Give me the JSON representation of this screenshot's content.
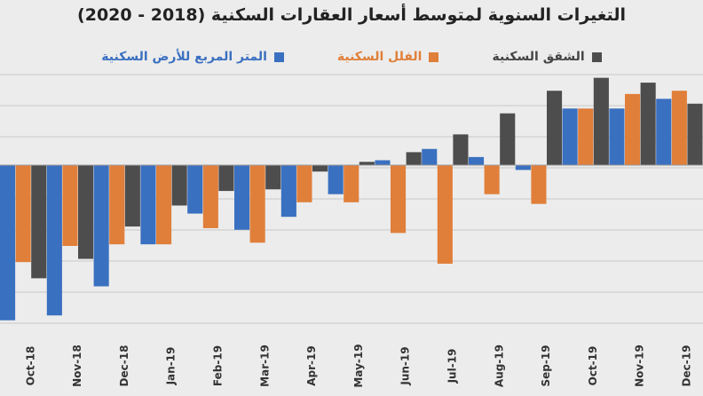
{
  "chart_data": {
    "type": "bar",
    "title": "التغيرات السنوية لمتوسط أسعار العقارات السكنية (2018 - 2020)",
    "categories": [
      "Oct-18",
      "Nov-18",
      "Dec-18",
      "Jan-19",
      "Feb-19",
      "Mar-19",
      "Apr-19",
      "May-19",
      "Jun-19",
      "Jul-19",
      "Aug-19",
      "Sep-19",
      "Oct-19",
      "Nov-19",
      "Dec-19"
    ],
    "series": [
      {
        "name": "الشقق السكنية",
        "color": "#4d4d4d",
        "values": [
          -7.0,
          -5.8,
          -3.8,
          -2.5,
          -1.6,
          -1.5,
          -0.4,
          0.2,
          0.8,
          1.9,
          3.2,
          4.6,
          5.4,
          5.1,
          3.8
        ]
      },
      {
        "name": "الفلل السكنية",
        "color": "#e07f3a",
        "values": [
          -6.0,
          -5.0,
          -4.9,
          -4.9,
          -3.9,
          -4.8,
          -2.3,
          -2.3,
          -4.2,
          -6.1,
          -1.8,
          -2.4,
          3.5,
          4.4,
          4.6
        ]
      },
      {
        "name": "المتر المربع للأرض السكنية",
        "color": "#3a70c0",
        "values": [
          -9.6,
          -9.3,
          -7.5,
          -4.9,
          -3.0,
          -4.0,
          -3.2,
          -1.8,
          0.3,
          1.0,
          0.5,
          -0.3,
          3.5,
          3.5,
          4.1
        ]
      }
    ],
    "ylim": [
      -10.0,
      5.6
    ],
    "grid": true,
    "legend_position": "top"
  }
}
